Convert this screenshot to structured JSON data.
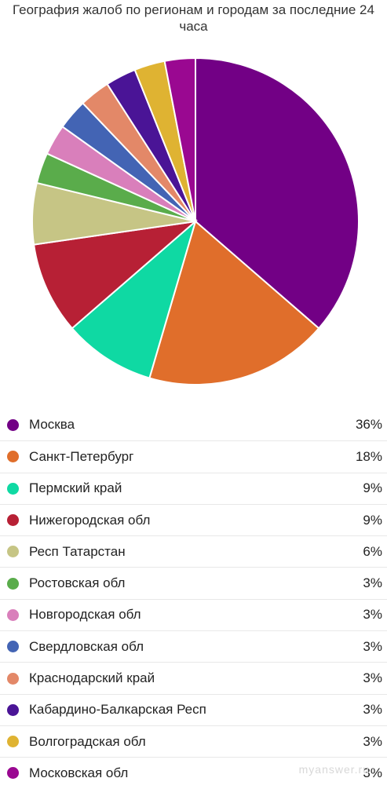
{
  "chart_data": {
    "type": "pie",
    "title": "География жалоб по регионам и городам за последние 24 часа",
    "slices": [
      {
        "label": "Москва",
        "value": 36,
        "pct_label": "36%",
        "color": "#720085"
      },
      {
        "label": "Санкт-Петербург",
        "value": 18,
        "pct_label": "18%",
        "color": "#e06e2b"
      },
      {
        "label": "Пермский край",
        "value": 9,
        "pct_label": "9%",
        "color": "#0fd9a3"
      },
      {
        "label": "Нижегородская обл",
        "value": 9,
        "pct_label": "9%",
        "color": "#b72035"
      },
      {
        "label": "Респ Татарстан",
        "value": 6,
        "pct_label": "6%",
        "color": "#c6c585"
      },
      {
        "label": "Ростовская обл",
        "value": 3,
        "pct_label": "3%",
        "color": "#5aac4b"
      },
      {
        "label": "Новгородская обл",
        "value": 3,
        "pct_label": "3%",
        "color": "#d97fbb"
      },
      {
        "label": "Свердловская обл",
        "value": 3,
        "pct_label": "3%",
        "color": "#4364b4"
      },
      {
        "label": "Краснодарский край",
        "value": 3,
        "pct_label": "3%",
        "color": "#e38868"
      },
      {
        "label": "Кабардино-Балкарская Респ",
        "value": 3,
        "pct_label": "3%",
        "color": "#4a1496"
      },
      {
        "label": "Волгоградская обл",
        "value": 3,
        "pct_label": "3%",
        "color": "#dfb332"
      },
      {
        "label": "Московская обл",
        "value": 3,
        "pct_label": "3%",
        "color": "#9a0891"
      }
    ],
    "legend": "bottom"
  },
  "watermark": "myanswer.ru"
}
